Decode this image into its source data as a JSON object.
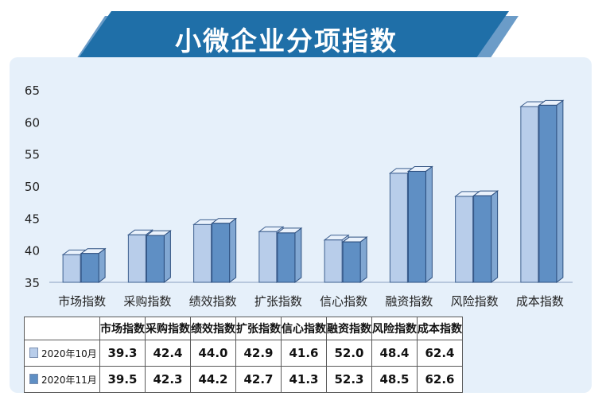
{
  "title": "小微企业分项指数",
  "colors": {
    "banner": "#1f6fa8",
    "series1": "#b8cdea",
    "series2": "#5f8fc4",
    "panel": "#e6f0fa"
  },
  "chart_data": {
    "type": "bar",
    "categories": [
      "市场指数",
      "采购指数",
      "绩效指数",
      "扩张指数",
      "信心指数",
      "融资指数",
      "风险指数",
      "成本指数"
    ],
    "series": [
      {
        "name": "2020年10月",
        "values": [
          39.3,
          42.4,
          44.0,
          42.9,
          41.6,
          52.0,
          48.4,
          62.4
        ]
      },
      {
        "name": "2020年11月",
        "values": [
          39.5,
          42.3,
          44.2,
          42.7,
          41.3,
          52.3,
          48.5,
          62.6
        ]
      }
    ],
    "yticks": [
      35,
      40,
      45,
      50,
      55,
      60,
      65
    ],
    "ylim": [
      35,
      65
    ],
    "grid": false,
    "legend": "table-below"
  },
  "table": {
    "rows": [
      {
        "label": "2020年10月",
        "values": [
          "39.3",
          "42.4",
          "44.0",
          "42.9",
          "41.6",
          "52.0",
          "48.4",
          "62.4"
        ]
      },
      {
        "label": "2020年11月",
        "values": [
          "39.5",
          "42.3",
          "44.2",
          "42.7",
          "41.3",
          "52.3",
          "48.5",
          "62.6"
        ]
      }
    ]
  }
}
